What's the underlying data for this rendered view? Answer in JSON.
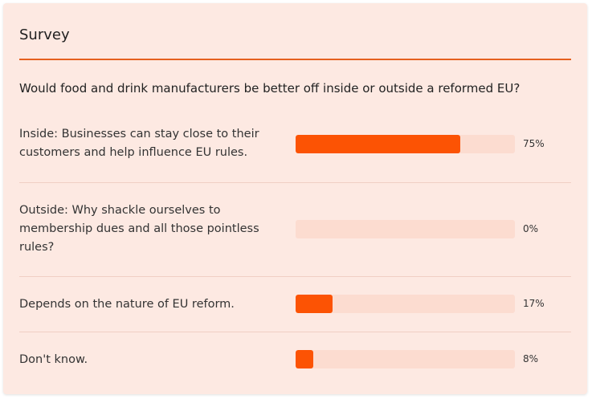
{
  "survey": {
    "title": "Survey",
    "question": "Would food and drink manufacturers be better off inside or outside a reformed EU?",
    "options": [
      {
        "label": "Inside: Businesses can stay close to their customers and help influence EU rules.",
        "percent_text": "75%",
        "fraction": 0.75
      },
      {
        "label": "Outside: Why shackle ourselves to membership dues and all those pointless rules?",
        "percent_text": "0%",
        "fraction": 0.0
      },
      {
        "label": "Depends on the nature of EU reform.",
        "percent_text": "17%",
        "fraction": 0.17
      },
      {
        "label": "Don't know.",
        "percent_text": "8%",
        "fraction": 0.08
      }
    ]
  },
  "colors": {
    "accent": "#e5601f",
    "bar_fill": "#fc5304",
    "bar_track": "#fcdcd0",
    "card_bg": "#fde9e2"
  }
}
